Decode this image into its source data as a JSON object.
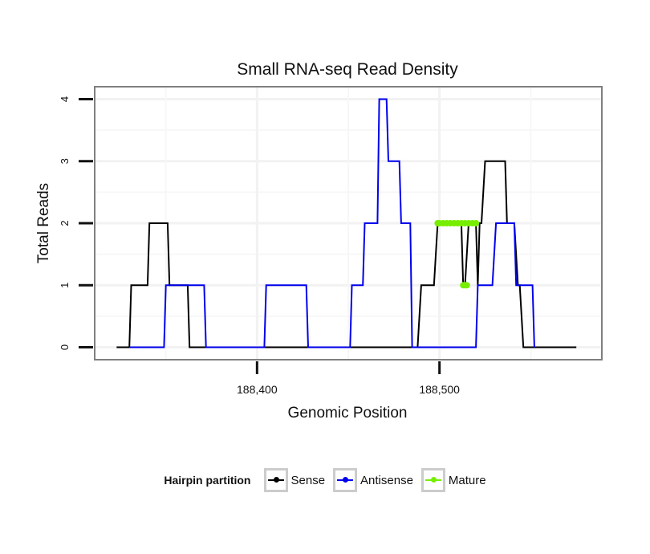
{
  "chart_data": {
    "type": "line",
    "title": "Small RNA-seq Read Density",
    "xlabel": "Genomic Position",
    "ylabel": "Total Reads",
    "xlim": [
      188311,
      188589
    ],
    "ylim": [
      -0.2,
      4.2
    ],
    "x_ticks": [
      188400,
      188500
    ],
    "x_tick_labels": [
      "188,400",
      "188,500"
    ],
    "y_ticks": [
      0,
      1,
      2,
      3,
      4
    ],
    "y_tick_labels": [
      "0",
      "1",
      "2",
      "3",
      "4"
    ],
    "grid": true,
    "legend_title": "Hairpin partition",
    "legend_position": "bottom",
    "series": [
      {
        "name": "Sense",
        "color": "#000000",
        "points": [
          [
            188323,
            0
          ],
          [
            188330,
            0
          ],
          [
            188331,
            1
          ],
          [
            188340,
            1
          ],
          [
            188341,
            2
          ],
          [
            188351,
            2
          ],
          [
            188352,
            1
          ],
          [
            188362,
            1
          ],
          [
            188363,
            0
          ],
          [
            188480,
            0
          ],
          [
            188488,
            0
          ],
          [
            188490,
            1
          ],
          [
            188497,
            1
          ],
          [
            188499,
            2
          ],
          [
            188512,
            2
          ],
          [
            188513,
            1
          ],
          [
            188514,
            1
          ],
          [
            188516,
            2
          ],
          [
            188520,
            2
          ],
          [
            188521,
            1
          ],
          [
            188522,
            2
          ],
          [
            188523,
            2
          ],
          [
            188525,
            3
          ],
          [
            188536,
            3
          ],
          [
            188537,
            2
          ],
          [
            188541,
            2
          ],
          [
            188543,
            1
          ],
          [
            188544,
            1
          ],
          [
            188546,
            0
          ],
          [
            188575,
            0
          ]
        ]
      },
      {
        "name": "Antisense",
        "color": "#0000ee",
        "points": [
          [
            188330,
            0
          ],
          [
            188349,
            0
          ],
          [
            188350,
            1
          ],
          [
            188371,
            1
          ],
          [
            188372,
            0
          ],
          [
            188404,
            0
          ],
          [
            188405,
            1
          ],
          [
            188427,
            1
          ],
          [
            188428,
            0
          ],
          [
            188451,
            0
          ],
          [
            188452,
            1
          ],
          [
            188458,
            1
          ],
          [
            188459,
            2
          ],
          [
            188466,
            2
          ],
          [
            188467,
            4
          ],
          [
            188471,
            4
          ],
          [
            188472,
            3
          ],
          [
            188478,
            3
          ],
          [
            188479,
            2
          ],
          [
            188484,
            2
          ],
          [
            188485,
            0
          ],
          [
            188520,
            0
          ],
          [
            188521,
            1
          ],
          [
            188529,
            1
          ],
          [
            188531,
            2
          ],
          [
            188541,
            2
          ],
          [
            188542,
            1
          ],
          [
            188551,
            1
          ],
          [
            188552,
            0
          ]
        ]
      },
      {
        "name": "Mature",
        "color": "#77ee00",
        "points": [
          [
            188499,
            2
          ],
          [
            188500,
            2
          ],
          [
            188502,
            2
          ],
          [
            188504,
            2
          ],
          [
            188506,
            2
          ],
          [
            188508,
            2
          ],
          [
            188510,
            2
          ],
          [
            188512,
            2
          ],
          [
            188514,
            2
          ],
          [
            188516,
            2
          ],
          [
            188518,
            2
          ],
          [
            188520,
            2
          ]
        ],
        "points2": [
          [
            188513,
            1
          ],
          [
            188514,
            1
          ],
          [
            188515,
            1
          ]
        ]
      }
    ]
  }
}
